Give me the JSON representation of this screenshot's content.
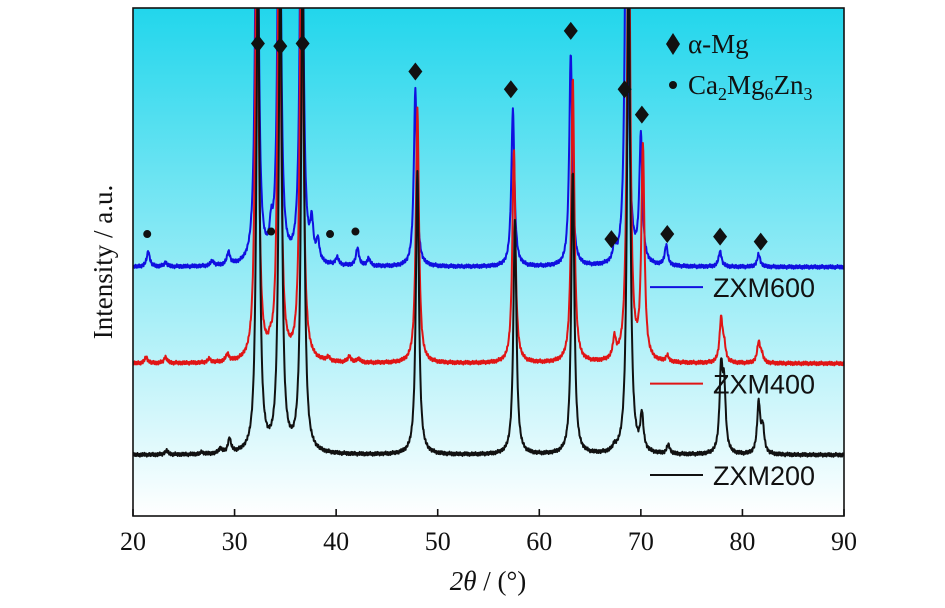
{
  "chart_data": {
    "type": "line",
    "xlabel_italic": "2θ",
    "xlabel_unit": " / (°)",
    "ylabel": "Intensity / a.u.",
    "xlim": [
      20,
      90
    ],
    "xticks": [
      20,
      30,
      40,
      50,
      60,
      70,
      80,
      90
    ],
    "ylim": [
      0,
      100
    ],
    "background": {
      "top": "#22d6ec",
      "bottom": "#ffffff"
    },
    "legend": [
      {
        "marker": "diamond",
        "label": "α-Mg"
      },
      {
        "marker": "dot",
        "label": "Ca",
        "parts": [
          [
            "Ca",
            false
          ],
          [
            "2",
            true
          ],
          [
            "Mg",
            false
          ],
          [
            "6",
            true
          ],
          [
            "Zn",
            false
          ],
          [
            "3",
            true
          ]
        ]
      }
    ],
    "series": [
      {
        "name": "ZXM600",
        "color": "#1010e0",
        "baseline": 49,
        "peaks": [
          [
            21.5,
            3
          ],
          [
            23.2,
            0.8
          ],
          [
            27.8,
            1
          ],
          [
            29.4,
            2.5
          ],
          [
            32.2,
            100
          ],
          [
            33.6,
            5
          ],
          [
            34.4,
            100
          ],
          [
            36.6,
            100
          ],
          [
            37.6,
            7
          ],
          [
            38.2,
            4
          ],
          [
            40.1,
            1.5
          ],
          [
            42.1,
            3.5
          ],
          [
            43.2,
            1.5
          ],
          [
            47.8,
            35
          ],
          [
            57.4,
            31
          ],
          [
            63.1,
            42
          ],
          [
            67.4,
            3
          ],
          [
            68.6,
            100
          ],
          [
            70.0,
            25
          ],
          [
            72.5,
            4
          ],
          [
            77.8,
            3
          ],
          [
            81.6,
            2.5
          ]
        ],
        "diamonds": [
          [
            32.3,
            93
          ],
          [
            34.5,
            92.5
          ],
          [
            36.7,
            93
          ],
          [
            47.8,
            87.5
          ],
          [
            57.2,
            84
          ],
          [
            63.1,
            95.5
          ],
          [
            67.1,
            54.5
          ],
          [
            68.4,
            84
          ],
          [
            70.1,
            79
          ],
          [
            72.6,
            55.5
          ],
          [
            77.8,
            55
          ],
          [
            81.8,
            54
          ]
        ],
        "dots": [
          [
            21.4,
            55.5
          ],
          [
            33.6,
            56
          ],
          [
            39.4,
            55.5
          ],
          [
            41.9,
            56
          ]
        ]
      },
      {
        "name": "ZXM400",
        "color": "#e01515",
        "baseline": 30,
        "peaks": [
          [
            21.3,
            1.2
          ],
          [
            23.2,
            1.2
          ],
          [
            27.5,
            0.7
          ],
          [
            29.3,
            1.5
          ],
          [
            32.2,
            100
          ],
          [
            33.5,
            1.5
          ],
          [
            34.4,
            100
          ],
          [
            36.6,
            100
          ],
          [
            39.2,
            0.8
          ],
          [
            41.3,
            1.2
          ],
          [
            42.2,
            0.8
          ],
          [
            48.0,
            50
          ],
          [
            57.5,
            42
          ],
          [
            63.3,
            56
          ],
          [
            67.4,
            4
          ],
          [
            68.8,
            100
          ],
          [
            70.2,
            42
          ],
          [
            72.6,
            1.2
          ],
          [
            77.9,
            8.5
          ],
          [
            78.2,
            3
          ],
          [
            81.6,
            4
          ],
          [
            81.9,
            1.5
          ]
        ],
        "diamonds": [],
        "dots": []
      },
      {
        "name": "ZXM200",
        "color": "#111111",
        "baseline": 12,
        "peaks": [
          [
            23.3,
            0.8
          ],
          [
            26.8,
            0.4
          ],
          [
            28.6,
            1
          ],
          [
            29.5,
            2.8
          ],
          [
            32.3,
            100
          ],
          [
            34.5,
            100
          ],
          [
            36.7,
            100
          ],
          [
            48.0,
            56
          ],
          [
            57.6,
            46
          ],
          [
            63.3,
            56
          ],
          [
            67.4,
            0.9
          ],
          [
            68.8,
            100
          ],
          [
            70.1,
            7
          ],
          [
            72.7,
            1.8
          ],
          [
            77.9,
            16
          ],
          [
            78.2,
            12
          ],
          [
            81.6,
            10
          ],
          [
            82.0,
            5
          ]
        ],
        "diamonds": [],
        "dots": []
      }
    ]
  }
}
